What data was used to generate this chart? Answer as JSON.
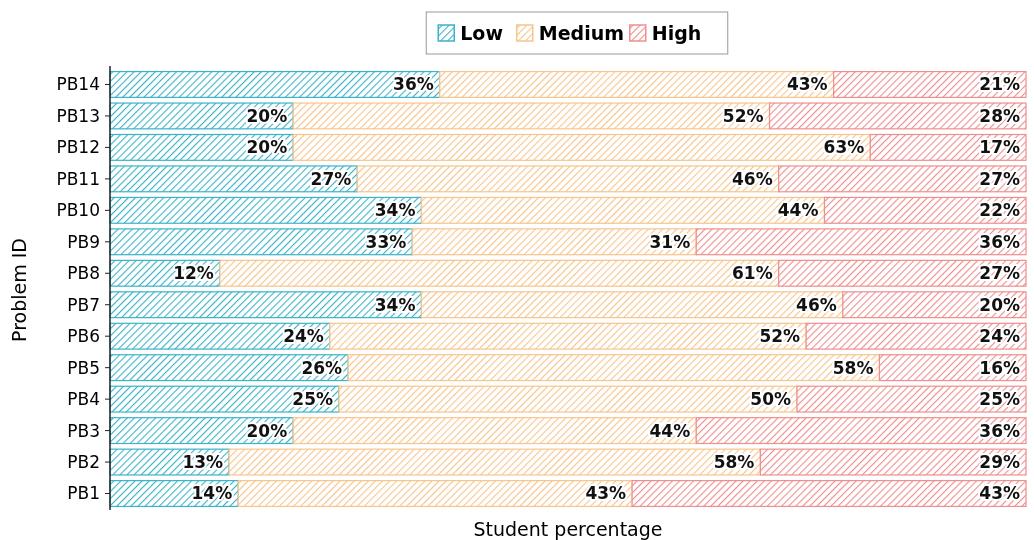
{
  "chart_data": {
    "type": "bar",
    "orientation": "horizontal",
    "stacked": true,
    "xlabel": "Student percentage",
    "ylabel": "Problem ID",
    "legend": "top",
    "tick_labels": "y",
    "xlim": [
      0,
      100
    ],
    "categories": [
      "PB14",
      "PB13",
      "PB12",
      "PB11",
      "PB10",
      "PB9",
      "PB8",
      "PB7",
      "PB6",
      "PB5",
      "PB4",
      "PB3",
      "PB2",
      "PB1"
    ],
    "series": [
      {
        "name": "Low",
        "color": "#3bb3c8",
        "values": [
          36,
          20,
          20,
          27,
          34,
          33,
          12,
          34,
          24,
          26,
          25,
          20,
          13,
          14
        ],
        "value_labels": [
          "36%",
          "20%",
          "20%",
          "27%",
          "34%",
          "33%",
          "12%",
          "34%",
          "24%",
          "26%",
          "25%",
          "20%",
          "13%",
          "14%"
        ]
      },
      {
        "name": "Medium",
        "color": "#f7c48c",
        "values": [
          43,
          52,
          63,
          46,
          44,
          31,
          61,
          46,
          52,
          58,
          50,
          44,
          58,
          43
        ],
        "value_labels": [
          "43%",
          "52%",
          "63%",
          "46%",
          "44%",
          "31%",
          "61%",
          "46%",
          "52%",
          "58%",
          "50%",
          "44%",
          "58%",
          "43%"
        ]
      },
      {
        "name": "High",
        "color": "#ef8e8e",
        "values": [
          21,
          28,
          17,
          27,
          22,
          36,
          27,
          20,
          24,
          16,
          25,
          36,
          29,
          43
        ],
        "value_labels": [
          "21%",
          "28%",
          "17%",
          "27%",
          "22%",
          "36%",
          "27%",
          "20%",
          "24%",
          "16%",
          "25%",
          "36%",
          "29%",
          "43%"
        ]
      }
    ]
  }
}
